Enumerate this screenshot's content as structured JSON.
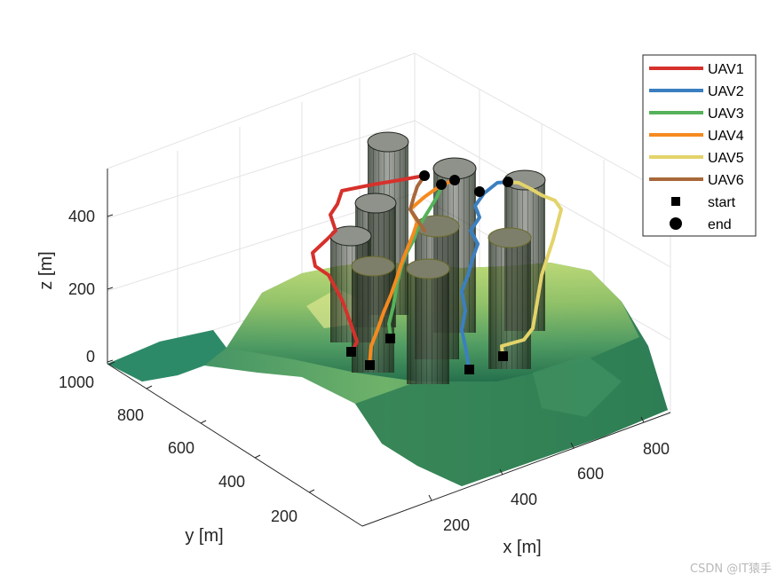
{
  "chart_data": {
    "type": "3d-line",
    "title": "",
    "xlabel": "x [m]",
    "ylabel": "y [m]",
    "zlabel": "z [m]",
    "x_ticks": [
      "200",
      "400",
      "600",
      "800"
    ],
    "y_ticks": [
      "200",
      "400",
      "600",
      "800",
      "1000"
    ],
    "z_ticks": [
      "0",
      "200",
      "400"
    ],
    "legend_position": "top-right",
    "grid": true,
    "series": [
      {
        "name": "UAV1",
        "color": "#d6312c"
      },
      {
        "name": "UAV2",
        "color": "#3b7fc0"
      },
      {
        "name": "UAV3",
        "color": "#55b25a"
      },
      {
        "name": "UAV4",
        "color": "#f58a1f"
      },
      {
        "name": "UAV5",
        "color": "#e3d36a"
      },
      {
        "name": "UAV6",
        "color": "#a8683a"
      }
    ],
    "markers": [
      {
        "name": "start",
        "shape": "square"
      },
      {
        "name": "end",
        "shape": "circle"
      }
    ]
  },
  "watermark": "CSDN @IT猿手"
}
